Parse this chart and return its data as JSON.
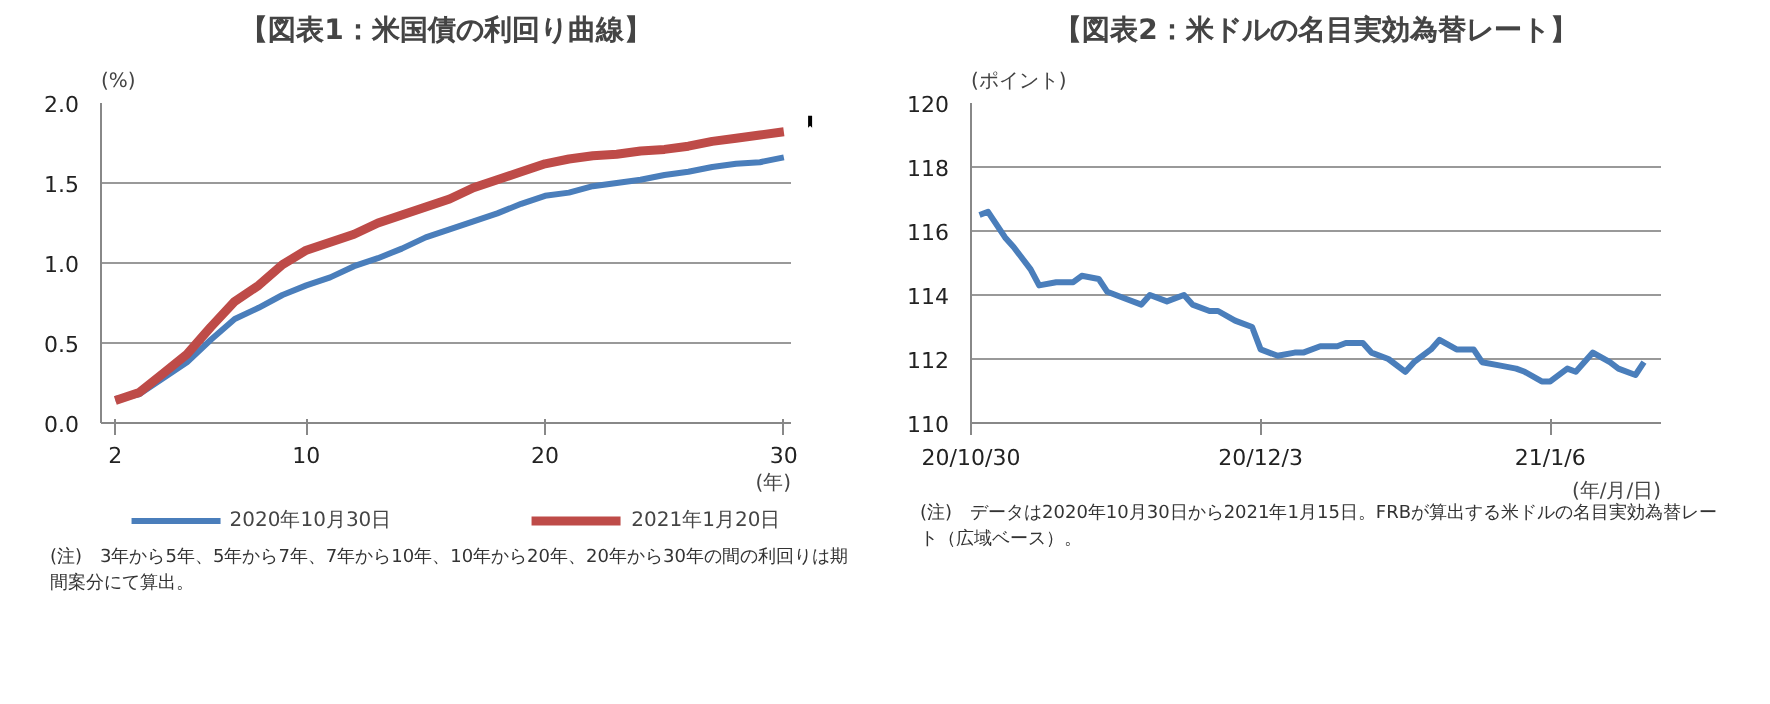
{
  "chart_data": [
    {
      "type": "line",
      "title": "【図表1：米国債の利回り曲線】",
      "ylabel": "(%)",
      "xlabel": "(年)",
      "x": [
        2,
        3,
        4,
        5,
        6,
        7,
        8,
        9,
        10,
        11,
        12,
        13,
        14,
        15,
        16,
        17,
        18,
        19,
        20,
        21,
        22,
        23,
        24,
        25,
        26,
        27,
        28,
        29,
        30
      ],
      "series": [
        {
          "name": "2020年10月30日",
          "color": "#4a7ebb",
          "values": [
            0.15,
            0.18,
            0.28,
            0.38,
            0.52,
            0.65,
            0.72,
            0.8,
            0.86,
            0.91,
            0.98,
            1.03,
            1.09,
            1.16,
            1.21,
            1.26,
            1.31,
            1.37,
            1.42,
            1.44,
            1.48,
            1.5,
            1.52,
            1.55,
            1.57,
            1.6,
            1.62,
            1.63,
            1.66
          ]
        },
        {
          "name": "2021年1月20日",
          "color": "#be4b48",
          "values": [
            0.14,
            0.19,
            0.31,
            0.43,
            0.6,
            0.76,
            0.86,
            0.99,
            1.08,
            1.13,
            1.18,
            1.25,
            1.3,
            1.35,
            1.4,
            1.47,
            1.52,
            1.57,
            1.62,
            1.65,
            1.67,
            1.68,
            1.7,
            1.71,
            1.73,
            1.76,
            1.78,
            1.8,
            1.82
          ]
        }
      ],
      "xlim": [
        1.4,
        30.3
      ],
      "xticks": [
        2,
        10,
        20,
        30
      ],
      "ylim": [
        0,
        2
      ],
      "yticks": [
        {
          "value": 0,
          "label": "0.0"
        },
        {
          "value": 0.5,
          "label": "0.5"
        },
        {
          "value": 1,
          "label": "1.0"
        },
        {
          "value": 1.5,
          "label": "1.5"
        },
        {
          "value": 2,
          "label": "2.0"
        }
      ],
      "grid": "y",
      "legend": "bottom",
      "marker": "none",
      "line_style": "solid",
      "annotations": [
        "(注)　3年から5年、5年から7年、7年から10年、10年から20年、20年から30年の間の利回りは期間案分にて算出。"
      ]
    },
    {
      "type": "line",
      "title": "【図表2：米ドルの名目実効為替レート】",
      "ylabel": "(ポイント)",
      "xlabel": "(年/月/日)",
      "x": [
        "2020-10-31",
        "2020-11-01",
        "2020-11-03",
        "2020-11-04",
        "2020-11-06",
        "2020-11-07",
        "2020-11-09",
        "2020-11-11",
        "2020-11-12",
        "2020-11-14",
        "2020-11-15",
        "2020-11-17",
        "2020-11-19",
        "2020-11-20",
        "2020-11-22",
        "2020-11-24",
        "2020-11-25",
        "2020-11-27",
        "2020-11-28",
        "2020-11-30",
        "2020-12-02",
        "2020-12-03",
        "2020-12-05",
        "2020-12-07",
        "2020-12-08",
        "2020-12-10",
        "2020-12-12",
        "2020-12-13",
        "2020-12-15",
        "2020-12-16",
        "2020-12-18",
        "2020-12-20",
        "2020-12-21",
        "2020-12-23",
        "2020-12-24",
        "2020-12-26",
        "2020-12-28",
        "2020-12-29",
        "2020-12-31",
        "2021-01-02",
        "2021-01-03",
        "2021-01-05",
        "2021-01-06",
        "2021-01-08",
        "2021-01-09",
        "2021-01-11",
        "2021-01-13",
        "2021-01-14",
        "2021-01-16",
        "2021-01-17"
      ],
      "series": [
        {
          "color": "#4a7ebb",
          "values": [
            116.5,
            116.6,
            115.8,
            115.5,
            114.8,
            114.3,
            114.4,
            114.4,
            114.6,
            114.5,
            114.1,
            113.9,
            113.7,
            114.0,
            113.8,
            114.0,
            113.7,
            113.5,
            113.5,
            113.2,
            113.0,
            112.3,
            112.1,
            112.2,
            112.2,
            112.4,
            112.4,
            112.5,
            112.5,
            112.2,
            112.0,
            111.6,
            111.9,
            112.3,
            112.6,
            112.3,
            112.3,
            111.9,
            111.8,
            111.7,
            111.6,
            111.3,
            111.3,
            111.7,
            111.6,
            112.2,
            111.9,
            111.7,
            111.5,
            111.9
          ]
        }
      ],
      "xlim": [
        "2020-10-30",
        "2021-01-19"
      ],
      "xticks": [
        {
          "value": "2020-10-30",
          "label": "20/10/30"
        },
        {
          "value": "2020-12-03",
          "label": "20/12/3"
        },
        {
          "value": "2021-01-06",
          "label": "21/1/6"
        }
      ],
      "ylim": [
        110,
        120
      ],
      "yticks": [
        110,
        112,
        114,
        116,
        118,
        120
      ],
      "grid": "y",
      "marker": "none",
      "line_style": "solid",
      "annotations": [
        "(注)　データは2020年10月30日から2021年1月15日。FRBが算出する米ドルの名目実効為替レート（広域ベース）。"
      ]
    }
  ]
}
